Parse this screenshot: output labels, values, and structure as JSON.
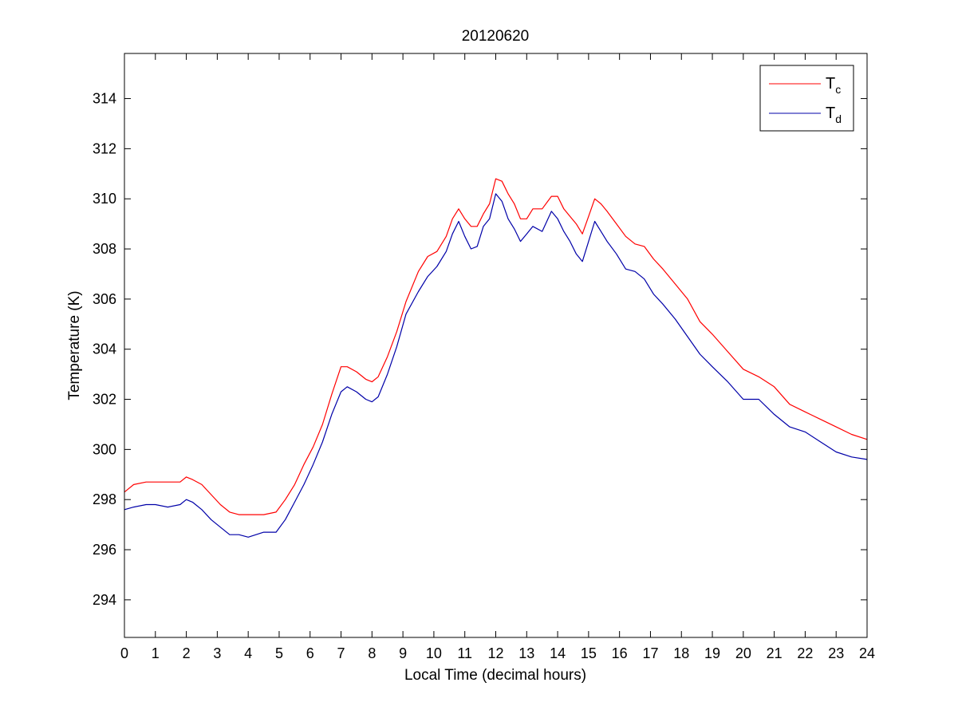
{
  "chart_data": {
    "type": "line",
    "title": "20120620",
    "xlabel": "Local Time (decimal hours)",
    "ylabel": "Temperature (K)",
    "xlim": [
      0,
      24
    ],
    "ylim": [
      292.5,
      315.8
    ],
    "xticks": [
      0,
      1,
      2,
      3,
      4,
      5,
      6,
      7,
      8,
      9,
      10,
      11,
      12,
      13,
      14,
      15,
      16,
      17,
      18,
      19,
      20,
      21,
      22,
      23,
      24
    ],
    "yticks": [
      294,
      296,
      298,
      300,
      302,
      304,
      306,
      308,
      310,
      312,
      314
    ],
    "grid": false,
    "legend_position": "top-right",
    "series": [
      {
        "name": "Tc",
        "name_main": "T",
        "name_sub": "c",
        "color": "#ff0000",
        "x": [
          0,
          0.3,
          0.7,
          1,
          1.4,
          1.8,
          2,
          2.2,
          2.5,
          2.8,
          3.1,
          3.4,
          3.7,
          4,
          4.5,
          4.9,
          5.2,
          5.5,
          5.8,
          6.1,
          6.4,
          6.7,
          7,
          7.2,
          7.5,
          7.8,
          8,
          8.2,
          8.5,
          8.8,
          9.1,
          9.5,
          9.8,
          10.1,
          10.4,
          10.6,
          10.8,
          11,
          11.2,
          11.4,
          11.6,
          11.8,
          12,
          12.2,
          12.4,
          12.6,
          12.8,
          13,
          13.2,
          13.5,
          13.8,
          14,
          14.2,
          14.4,
          14.6,
          14.8,
          15,
          15.2,
          15.4,
          15.6,
          15.9,
          16.2,
          16.5,
          16.8,
          17.1,
          17.4,
          17.8,
          18.2,
          18.6,
          19,
          19.5,
          20,
          20.5,
          21,
          21.5,
          22,
          22.5,
          23,
          23.5,
          24
        ],
        "y": [
          298.3,
          298.6,
          298.7,
          298.7,
          298.7,
          298.7,
          298.9,
          298.8,
          298.6,
          298.2,
          297.8,
          297.5,
          297.4,
          297.4,
          297.4,
          297.5,
          298,
          298.6,
          299.4,
          300.1,
          301,
          302.2,
          303.3,
          303.3,
          303.1,
          302.8,
          302.7,
          302.9,
          303.7,
          304.7,
          305.9,
          307.1,
          307.7,
          307.9,
          308.5,
          309.2,
          309.6,
          309.2,
          308.9,
          308.9,
          309.4,
          309.8,
          310.8,
          310.7,
          310.2,
          309.8,
          309.2,
          309.2,
          309.6,
          309.6,
          310.1,
          310.1,
          309.6,
          309.3,
          309,
          308.6,
          309.3,
          310,
          309.8,
          309.5,
          309,
          308.5,
          308.2,
          308.1,
          307.6,
          307.2,
          306.6,
          306,
          305.1,
          304.6,
          303.9,
          303.2,
          302.9,
          302.5,
          301.8,
          301.5,
          301.2,
          300.9,
          300.6,
          300.4
        ]
      },
      {
        "name": "Td",
        "name_main": "T",
        "name_sub": "d",
        "color": "#0000a8",
        "x": [
          0,
          0.3,
          0.7,
          1,
          1.4,
          1.8,
          2,
          2.2,
          2.5,
          2.8,
          3.1,
          3.4,
          3.7,
          4,
          4.5,
          4.9,
          5.2,
          5.5,
          5.8,
          6.1,
          6.4,
          6.7,
          7,
          7.2,
          7.5,
          7.8,
          8,
          8.2,
          8.5,
          8.8,
          9.1,
          9.5,
          9.8,
          10.1,
          10.4,
          10.6,
          10.8,
          11,
          11.2,
          11.4,
          11.6,
          11.8,
          12,
          12.2,
          12.4,
          12.6,
          12.8,
          13,
          13.2,
          13.5,
          13.8,
          14,
          14.2,
          14.4,
          14.6,
          14.8,
          15,
          15.2,
          15.4,
          15.6,
          15.9,
          16.2,
          16.5,
          16.8,
          17.1,
          17.4,
          17.8,
          18.2,
          18.6,
          19,
          19.5,
          20,
          20.5,
          21,
          21.5,
          22,
          22.5,
          23,
          23.5,
          24
        ],
        "y": [
          297.6,
          297.7,
          297.8,
          297.8,
          297.7,
          297.8,
          298,
          297.9,
          297.6,
          297.2,
          296.9,
          296.6,
          296.6,
          296.5,
          296.7,
          296.7,
          297.2,
          297.9,
          298.6,
          299.4,
          300.3,
          301.4,
          302.3,
          302.5,
          302.3,
          302,
          301.9,
          302.1,
          303,
          304.1,
          305.4,
          306.3,
          306.9,
          307.3,
          307.9,
          308.6,
          309.1,
          308.5,
          308,
          308.1,
          308.9,
          309.2,
          310.2,
          309.9,
          309.2,
          308.8,
          308.3,
          308.6,
          308.9,
          308.7,
          309.5,
          309.2,
          308.7,
          308.3,
          307.8,
          307.5,
          308.3,
          309.1,
          308.7,
          308.3,
          307.8,
          307.2,
          307.1,
          306.8,
          306.2,
          305.8,
          305.2,
          304.5,
          303.8,
          303.3,
          302.7,
          302,
          302,
          301.4,
          300.9,
          300.7,
          300.3,
          299.9,
          299.7,
          299.6
        ]
      }
    ]
  }
}
